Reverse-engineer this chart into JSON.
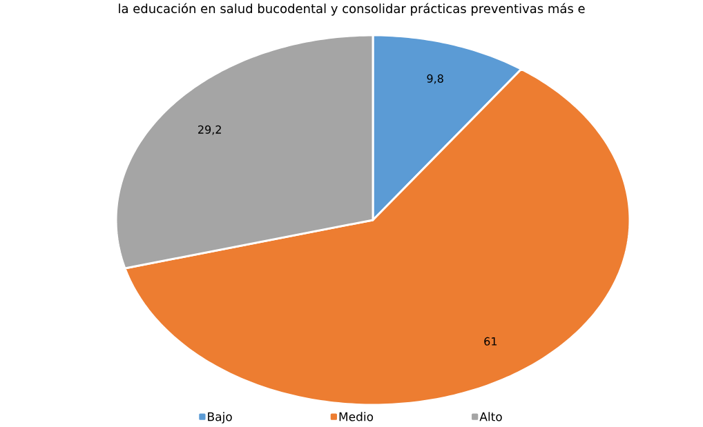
{
  "chart_data": {
    "type": "pie",
    "annotations": [
      "la educación en salud bucodental y consolidar prácticas preventivas más e"
    ],
    "categories": [
      "Bajo",
      "Medio",
      "Alto"
    ],
    "values": [
      9.8,
      61,
      29.2
    ],
    "value_labels": [
      "9,8",
      "61",
      "29,2"
    ],
    "colors": [
      "#5b9bd5",
      "#ed7d31",
      "#a5a5a5"
    ],
    "legend": "bottom"
  }
}
